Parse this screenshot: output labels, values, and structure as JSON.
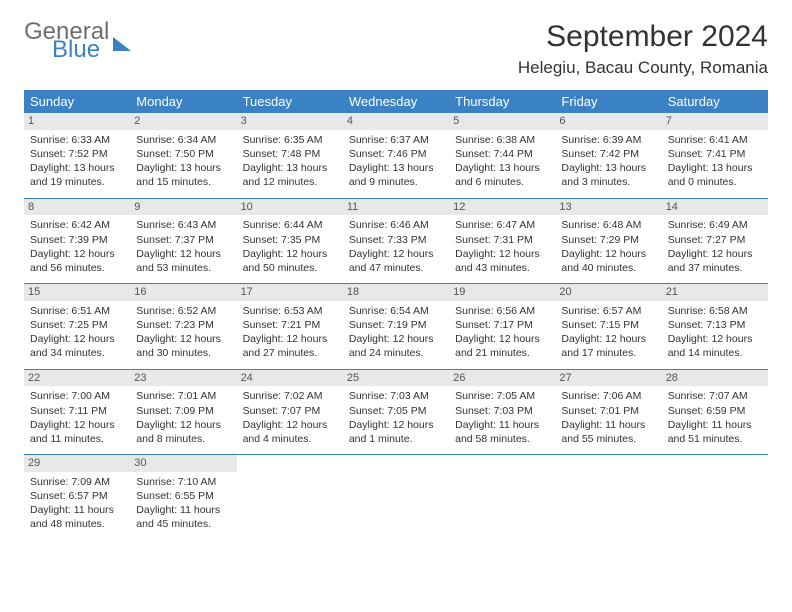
{
  "logo": {
    "general": "General",
    "blue": "Blue"
  },
  "title": "September 2024",
  "location": "Helegiu, Bacau County, Romania",
  "headers": [
    "Sunday",
    "Monday",
    "Tuesday",
    "Wednesday",
    "Thursday",
    "Friday",
    "Saturday"
  ],
  "colors": {
    "accent": "#3b82c4",
    "dayband": "#e8e8e8",
    "text": "#333333"
  },
  "weeks": [
    [
      {
        "n": "1",
        "sr": "6:33 AM",
        "ss": "7:52 PM",
        "dl": "13 hours and 19 minutes."
      },
      {
        "n": "2",
        "sr": "6:34 AM",
        "ss": "7:50 PM",
        "dl": "13 hours and 15 minutes."
      },
      {
        "n": "3",
        "sr": "6:35 AM",
        "ss": "7:48 PM",
        "dl": "13 hours and 12 minutes."
      },
      {
        "n": "4",
        "sr": "6:37 AM",
        "ss": "7:46 PM",
        "dl": "13 hours and 9 minutes."
      },
      {
        "n": "5",
        "sr": "6:38 AM",
        "ss": "7:44 PM",
        "dl": "13 hours and 6 minutes."
      },
      {
        "n": "6",
        "sr": "6:39 AM",
        "ss": "7:42 PM",
        "dl": "13 hours and 3 minutes."
      },
      {
        "n": "7",
        "sr": "6:41 AM",
        "ss": "7:41 PM",
        "dl": "13 hours and 0 minutes."
      }
    ],
    [
      {
        "n": "8",
        "sr": "6:42 AM",
        "ss": "7:39 PM",
        "dl": "12 hours and 56 minutes."
      },
      {
        "n": "9",
        "sr": "6:43 AM",
        "ss": "7:37 PM",
        "dl": "12 hours and 53 minutes."
      },
      {
        "n": "10",
        "sr": "6:44 AM",
        "ss": "7:35 PM",
        "dl": "12 hours and 50 minutes."
      },
      {
        "n": "11",
        "sr": "6:46 AM",
        "ss": "7:33 PM",
        "dl": "12 hours and 47 minutes."
      },
      {
        "n": "12",
        "sr": "6:47 AM",
        "ss": "7:31 PM",
        "dl": "12 hours and 43 minutes."
      },
      {
        "n": "13",
        "sr": "6:48 AM",
        "ss": "7:29 PM",
        "dl": "12 hours and 40 minutes."
      },
      {
        "n": "14",
        "sr": "6:49 AM",
        "ss": "7:27 PM",
        "dl": "12 hours and 37 minutes."
      }
    ],
    [
      {
        "n": "15",
        "sr": "6:51 AM",
        "ss": "7:25 PM",
        "dl": "12 hours and 34 minutes."
      },
      {
        "n": "16",
        "sr": "6:52 AM",
        "ss": "7:23 PM",
        "dl": "12 hours and 30 minutes."
      },
      {
        "n": "17",
        "sr": "6:53 AM",
        "ss": "7:21 PM",
        "dl": "12 hours and 27 minutes."
      },
      {
        "n": "18",
        "sr": "6:54 AM",
        "ss": "7:19 PM",
        "dl": "12 hours and 24 minutes."
      },
      {
        "n": "19",
        "sr": "6:56 AM",
        "ss": "7:17 PM",
        "dl": "12 hours and 21 minutes."
      },
      {
        "n": "20",
        "sr": "6:57 AM",
        "ss": "7:15 PM",
        "dl": "12 hours and 17 minutes."
      },
      {
        "n": "21",
        "sr": "6:58 AM",
        "ss": "7:13 PM",
        "dl": "12 hours and 14 minutes."
      }
    ],
    [
      {
        "n": "22",
        "sr": "7:00 AM",
        "ss": "7:11 PM",
        "dl": "12 hours and 11 minutes."
      },
      {
        "n": "23",
        "sr": "7:01 AM",
        "ss": "7:09 PM",
        "dl": "12 hours and 8 minutes."
      },
      {
        "n": "24",
        "sr": "7:02 AM",
        "ss": "7:07 PM",
        "dl": "12 hours and 4 minutes."
      },
      {
        "n": "25",
        "sr": "7:03 AM",
        "ss": "7:05 PM",
        "dl": "12 hours and 1 minute."
      },
      {
        "n": "26",
        "sr": "7:05 AM",
        "ss": "7:03 PM",
        "dl": "11 hours and 58 minutes."
      },
      {
        "n": "27",
        "sr": "7:06 AM",
        "ss": "7:01 PM",
        "dl": "11 hours and 55 minutes."
      },
      {
        "n": "28",
        "sr": "7:07 AM",
        "ss": "6:59 PM",
        "dl": "11 hours and 51 minutes."
      }
    ],
    [
      {
        "n": "29",
        "sr": "7:09 AM",
        "ss": "6:57 PM",
        "dl": "11 hours and 48 minutes."
      },
      {
        "n": "30",
        "sr": "7:10 AM",
        "ss": "6:55 PM",
        "dl": "11 hours and 45 minutes."
      },
      null,
      null,
      null,
      null,
      null
    ]
  ],
  "labels": {
    "sunrise": "Sunrise:",
    "sunset": "Sunset:",
    "daylight": "Daylight:"
  }
}
